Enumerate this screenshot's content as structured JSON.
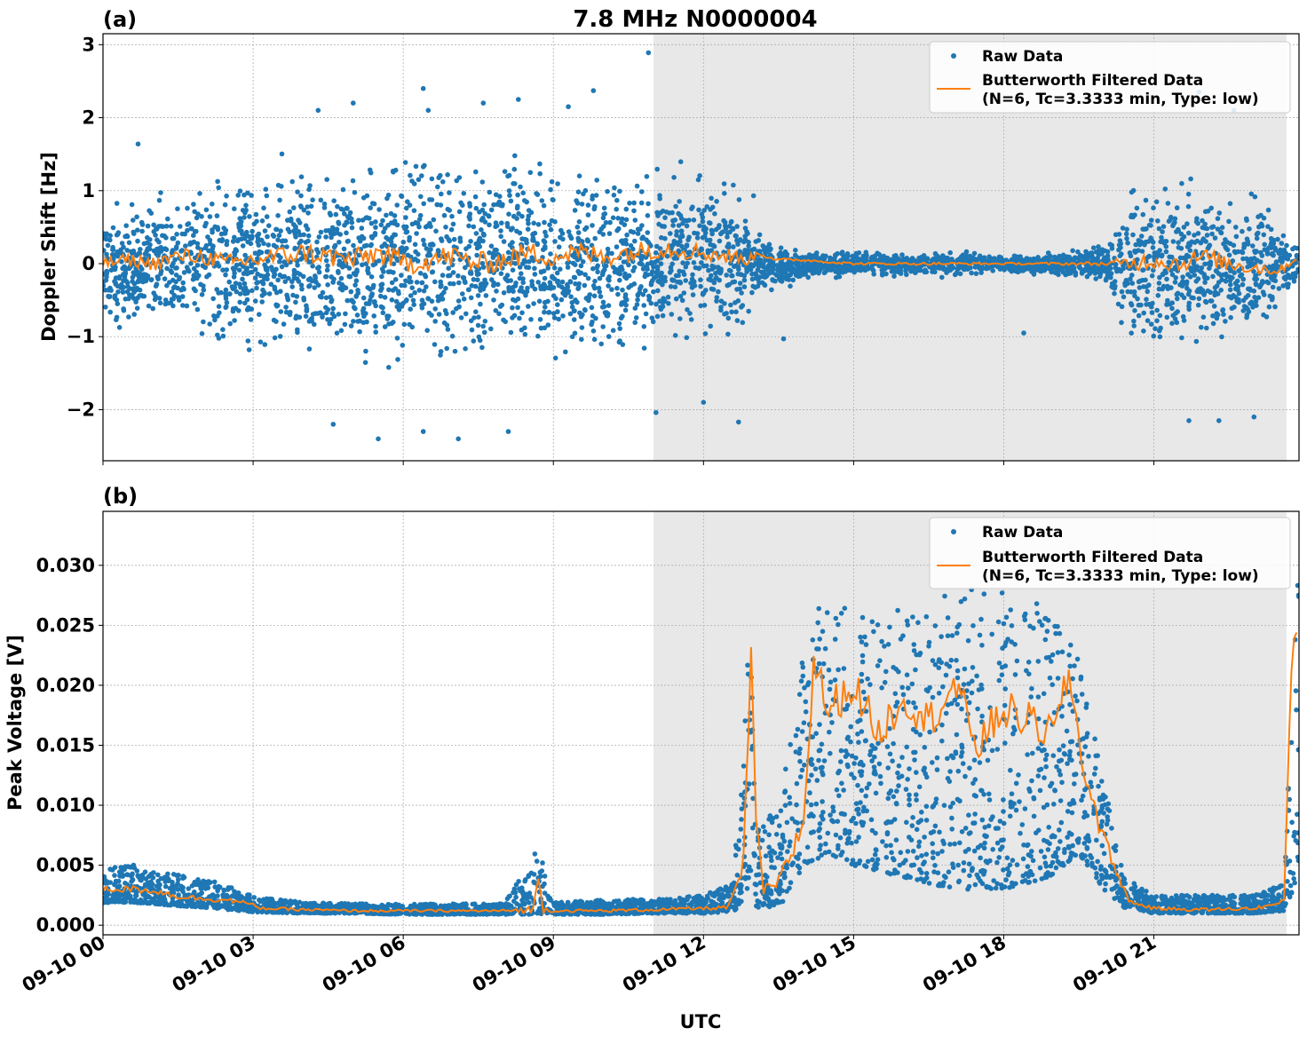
{
  "figure": {
    "title": "7.8 MHz N0000004",
    "xlabel": "UTC",
    "x_tick_labels": [
      "09-10 00",
      "09-10 03",
      "09-10 06",
      "09-10 09",
      "09-10 12",
      "09-10 15",
      "09-10 18",
      "09-10 21"
    ],
    "x_range_hours": [
      0,
      23.9
    ],
    "shaded_region_hours": [
      11.0,
      23.65
    ],
    "colors": {
      "raw": "#1f77b4",
      "filtered": "#ff7f0e",
      "shade": "#e8e8e8",
      "grid": "#b0b0b0"
    },
    "legend": {
      "raw": "Raw Data",
      "filtered_line1": "Butterworth Filtered Data",
      "filtered_line2": "(N=6, Tc=3.3333 min, Type: low)"
    }
  },
  "chart_data": [
    {
      "type": "scatter",
      "panel_label": "(a)",
      "ylabel": "Doppler Shift [Hz]",
      "ylim": [
        -2.7,
        3.15
      ],
      "y_ticks": [
        -2,
        -1,
        0,
        1,
        2,
        3
      ],
      "y_tick_labels": [
        "−2",
        "−1",
        "0",
        "1",
        "2",
        "3"
      ],
      "grid": true,
      "legend_position": "top-right",
      "series": [
        {
          "name": "Raw Data",
          "kind": "points",
          "x_hours": [
            0,
            1,
            2,
            3,
            4,
            5,
            6,
            7,
            8,
            9,
            10,
            11,
            12,
            12.7,
            13,
            13.5,
            14,
            15,
            16,
            17,
            18,
            19,
            20,
            20.5,
            21,
            22,
            23,
            23.9
          ],
          "y_envelope_low": [
            -1.0,
            -1.1,
            -1.3,
            -1.5,
            -1.6,
            -1.7,
            -1.8,
            -1.7,
            -1.6,
            -1.7,
            -1.6,
            -1.4,
            -1.2,
            -1.1,
            -0.6,
            -0.4,
            -0.25,
            -0.2,
            -0.2,
            -0.2,
            -0.15,
            -0.2,
            -0.3,
            -1.2,
            -1.4,
            -1.4,
            -1.3,
            -0.3
          ],
          "y_envelope_high": [
            0.9,
            1.1,
            1.3,
            1.5,
            1.6,
            1.7,
            1.8,
            1.8,
            1.7,
            1.7,
            1.6,
            1.5,
            1.4,
            1.2,
            0.6,
            0.3,
            0.2,
            0.2,
            0.2,
            0.2,
            0.15,
            0.2,
            0.3,
            1.2,
            1.4,
            1.3,
            1.2,
            0.3
          ],
          "outliers": [
            [
              10.9,
              2.89
            ],
            [
              6.4,
              2.4
            ],
            [
              9.8,
              2.37
            ],
            [
              5.0,
              2.2
            ],
            [
              6.5,
              2.1
            ],
            [
              7.6,
              2.2
            ],
            [
              8.3,
              2.25
            ],
            [
              9.3,
              2.15
            ],
            [
              4.3,
              2.1
            ],
            [
              0.7,
              1.64
            ],
            [
              4.6,
              -2.2
            ],
            [
              5.5,
              -2.4
            ],
            [
              6.4,
              -2.3
            ],
            [
              7.1,
              -2.4
            ],
            [
              8.1,
              -2.3
            ],
            [
              11.05,
              -2.04
            ],
            [
              12.7,
              -2.17
            ],
            [
              13.0,
              0.93
            ],
            [
              12.0,
              -1.9
            ],
            [
              21.7,
              -2.15
            ],
            [
              22.3,
              -2.15
            ],
            [
              23.0,
              -2.1
            ],
            [
              21.9,
              2.35
            ],
            [
              22.6,
              2.1
            ],
            [
              13.6,
              -1.03
            ],
            [
              18.4,
              -0.95
            ]
          ]
        },
        {
          "name": "Butterworth Filtered Data",
          "kind": "line",
          "x_hours": [
            0,
            0.5,
            1,
            1.5,
            2,
            2.5,
            3,
            3.5,
            4,
            4.5,
            5,
            5.5,
            6,
            6.5,
            7,
            7.5,
            8,
            8.5,
            9,
            9.5,
            10,
            10.5,
            11,
            11.5,
            12,
            12.5,
            12.9,
            13.1,
            13.5,
            14,
            15,
            16,
            17,
            18,
            19,
            20,
            20.5,
            21,
            21.5,
            22,
            22.5,
            23,
            23.5,
            23.9
          ],
          "y": [
            0.0,
            0.05,
            0.0,
            0.1,
            0.1,
            0.0,
            0.05,
            0.1,
            0.15,
            0.1,
            0.05,
            0.15,
            0.0,
            0.05,
            0.1,
            0.0,
            0.05,
            0.15,
            0.1,
            0.15,
            0.1,
            0.15,
            0.2,
            0.2,
            0.15,
            0.1,
            0.05,
            0.15,
            0.05,
            0.05,
            0.0,
            0.0,
            0.0,
            0.0,
            0.0,
            0.0,
            0.0,
            0.05,
            0.0,
            0.1,
            0.0,
            -0.05,
            -0.1,
            0.1
          ]
        }
      ]
    },
    {
      "type": "scatter",
      "panel_label": "(b)",
      "ylabel": "Peak Voltage [V]",
      "ylim": [
        -0.0008,
        0.0345
      ],
      "y_ticks": [
        0,
        0.005,
        0.01,
        0.015,
        0.02,
        0.025,
        0.03
      ],
      "y_tick_labels": [
        "0.000",
        "0.005",
        "0.010",
        "0.015",
        "0.020",
        "0.025",
        "0.030"
      ],
      "grid": true,
      "legend_position": "top-right",
      "series": [
        {
          "name": "Raw Data",
          "kind": "points",
          "x_hours": [
            0,
            0.5,
            1,
            1.5,
            2,
            2.5,
            3,
            4,
            5,
            6,
            7,
            8,
            8.7,
            9,
            10,
            11,
            12,
            12.6,
            12.85,
            12.95,
            13.05,
            13.3,
            13.6,
            14,
            14.5,
            15,
            16,
            17,
            18,
            18.9,
            19.5,
            20,
            20.4,
            21,
            22,
            23,
            23.6,
            23.9
          ],
          "y_low": [
            0.0018,
            0.0019,
            0.0018,
            0.0016,
            0.0015,
            0.0013,
            0.0011,
            0.001,
            0.001,
            0.0009,
            0.0009,
            0.0009,
            0.0009,
            0.0009,
            0.0009,
            0.001,
            0.001,
            0.0011,
            0.0025,
            0.004,
            0.0015,
            0.0015,
            0.002,
            0.005,
            0.006,
            0.005,
            0.004,
            0.003,
            0.003,
            0.004,
            0.006,
            0.003,
            0.0015,
            0.001,
            0.001,
            0.001,
            0.0012,
            0.004
          ],
          "y_high": [
            0.0045,
            0.0052,
            0.0045,
            0.0042,
            0.0038,
            0.0034,
            0.0024,
            0.0019,
            0.0018,
            0.0018,
            0.0018,
            0.0018,
            0.0065,
            0.0019,
            0.0021,
            0.0022,
            0.0025,
            0.0035,
            0.021,
            0.024,
            0.008,
            0.009,
            0.012,
            0.024,
            0.028,
            0.026,
            0.027,
            0.028,
            0.028,
            0.027,
            0.022,
            0.012,
            0.004,
            0.0025,
            0.0025,
            0.0025,
            0.0035,
            0.032
          ]
        },
        {
          "name": "Butterworth Filtered Data",
          "kind": "line",
          "x_hours": [
            0,
            0.5,
            1,
            1.5,
            2,
            2.5,
            2.9,
            3.2,
            4,
            5,
            6,
            7,
            8,
            8.6,
            8.7,
            8.8,
            9,
            10,
            11,
            12,
            12.5,
            12.8,
            12.95,
            13.05,
            13.2,
            13.5,
            14,
            14.2,
            14.5,
            15,
            15.5,
            16,
            16.5,
            17,
            17.5,
            18,
            18.5,
            19,
            19.3,
            19.6,
            19.9,
            20.2,
            20.5,
            21,
            22,
            23,
            23.5,
            23.6,
            23.75,
            23.9
          ],
          "y": [
            0.003,
            0.003,
            0.0029,
            0.0024,
            0.0022,
            0.0021,
            0.0018,
            0.0014,
            0.0013,
            0.0012,
            0.0012,
            0.0012,
            0.0012,
            0.0013,
            0.004,
            0.0013,
            0.0012,
            0.0012,
            0.0013,
            0.0014,
            0.0015,
            0.005,
            0.022,
            0.009,
            0.0028,
            0.0035,
            0.0085,
            0.022,
            0.018,
            0.02,
            0.016,
            0.019,
            0.017,
            0.02,
            0.015,
            0.018,
            0.017,
            0.016,
            0.021,
            0.013,
            0.0085,
            0.005,
            0.002,
            0.0014,
            0.0013,
            0.0014,
            0.0018,
            0.002,
            0.022,
            0.026
          ]
        }
      ]
    }
  ]
}
